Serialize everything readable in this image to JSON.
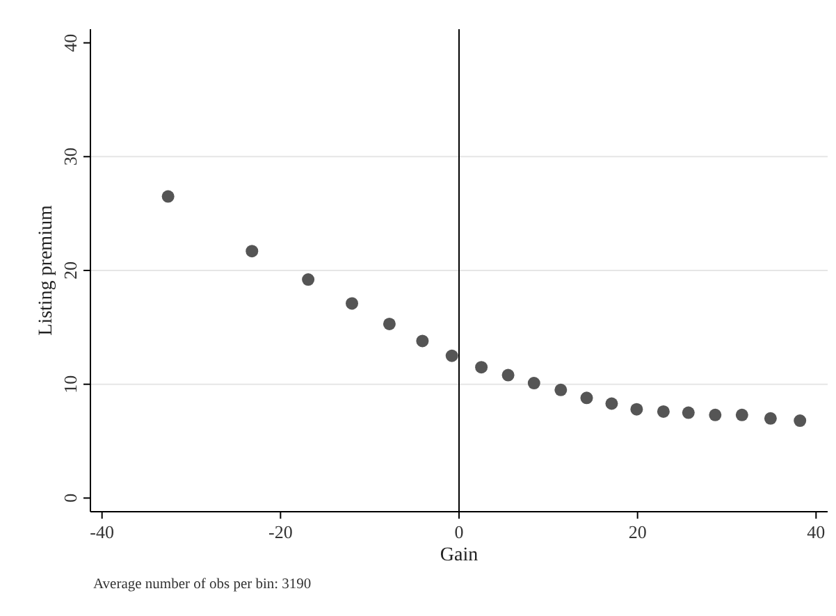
{
  "chart_data": {
    "type": "scatter",
    "xlabel": "Gain",
    "ylabel": "Listing premium",
    "annotations": [
      "Average number of obs per bin: 3190"
    ],
    "x": [
      -32.6,
      -23.2,
      -16.9,
      -12.0,
      -7.8,
      -4.1,
      -0.8,
      2.5,
      5.5,
      8.4,
      11.4,
      14.3,
      17.1,
      19.9,
      22.9,
      25.7,
      28.7,
      31.7,
      34.9,
      38.2
    ],
    "series": [
      {
        "color": "#555555",
        "values": [
          26.5,
          21.7,
          19.2,
          17.1,
          15.3,
          13.8,
          12.5,
          11.5,
          10.8,
          10.1,
          9.5,
          8.8,
          8.3,
          7.8,
          7.6,
          7.5,
          7.3,
          7.3,
          7.0,
          6.8
        ]
      }
    ],
    "xlim": [
      -41.3,
      41.3
    ],
    "ylim": [
      -1.2,
      41.2
    ],
    "xticks": [
      -40,
      -20,
      0,
      20,
      40
    ],
    "yticks": [
      0,
      10,
      20,
      30,
      40
    ],
    "ref_lines": [
      {
        "axis": "x",
        "value": 0,
        "color": "#000000"
      }
    ],
    "grid": "y",
    "marker": "circle"
  }
}
